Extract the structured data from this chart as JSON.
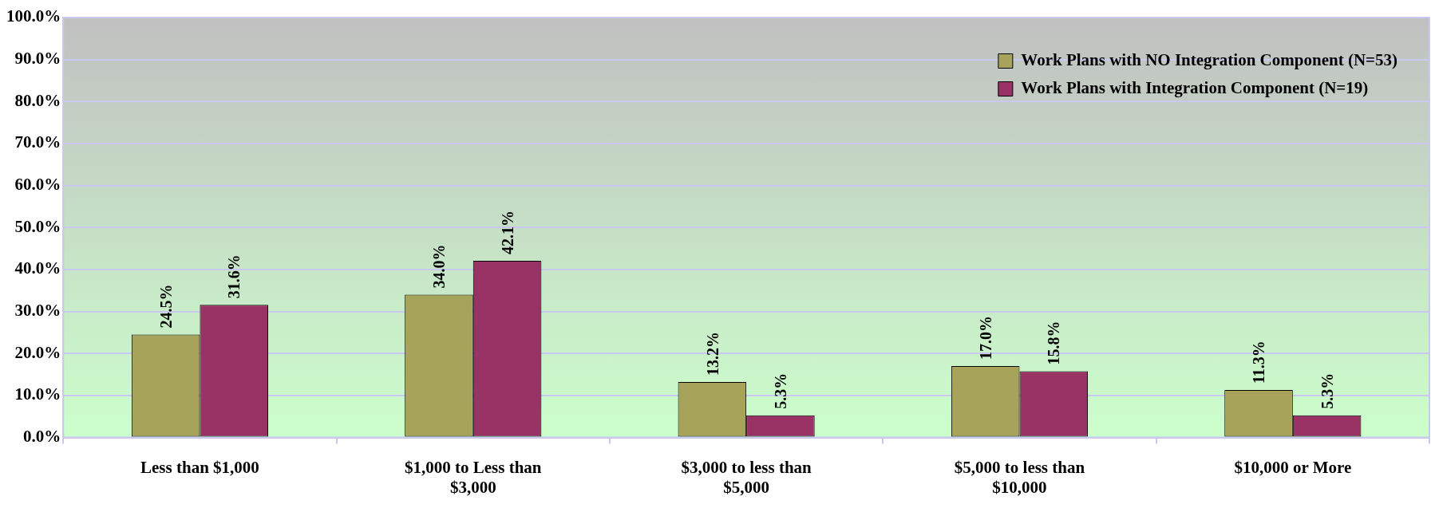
{
  "chart_data": {
    "type": "bar",
    "categories": [
      "Less than $1,000",
      "$1,000 to Less than $3,000",
      "$3,000 to less than $5,000",
      "$5,000 to less than $10,000",
      "$10,000 or More"
    ],
    "series": [
      {
        "name": "Work Plans with NO Integration Component (N=53)",
        "color": "#a8a35a",
        "values": [
          24.5,
          34.0,
          13.2,
          17.0,
          11.3
        ],
        "value_labels": [
          "24.5%",
          "34.0%",
          "13.2%",
          "17.0%",
          "11.3%"
        ]
      },
      {
        "name": "Work Plans with Integration Component (N=19)",
        "color": "#993366",
        "values": [
          31.6,
          42.1,
          5.3,
          15.8,
          5.3
        ],
        "value_labels": [
          "31.6%",
          "42.1%",
          "5.3%",
          "15.8%",
          "5.3%"
        ]
      }
    ],
    "ylim": [
      0,
      100
    ],
    "yticks": [
      {
        "value": 0,
        "label": "0.0%"
      },
      {
        "value": 10,
        "label": "10.0%"
      },
      {
        "value": 20,
        "label": "20.0%"
      },
      {
        "value": 30,
        "label": "30.0%"
      },
      {
        "value": 40,
        "label": "40.0%"
      },
      {
        "value": 50,
        "label": "50.0%"
      },
      {
        "value": 60,
        "label": "60.0%"
      },
      {
        "value": 70,
        "label": "70.0%"
      },
      {
        "value": 80,
        "label": "80.0%"
      },
      {
        "value": 90,
        "label": "90.0%"
      },
      {
        "value": 100,
        "label": "100.0%"
      }
    ],
    "grid": "y",
    "legend": "top right"
  }
}
